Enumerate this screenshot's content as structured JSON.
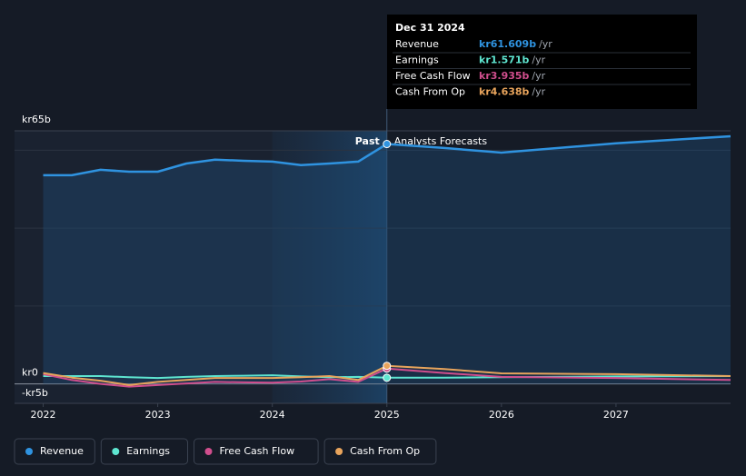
{
  "chart_data": {
    "type": "line",
    "annotations": {
      "past": "Past",
      "forecast": "Analysts Forecasts"
    },
    "tooltip": {
      "date": "Dec 31 2024",
      "rows": [
        {
          "name": "Revenue",
          "value": "kr61.609b",
          "unit": "/yr"
        },
        {
          "name": "Earnings",
          "value": "kr1.571b",
          "unit": "/yr"
        },
        {
          "name": "Free Cash Flow",
          "value": "kr3.935b",
          "unit": "/yr"
        },
        {
          "name": "Cash From Op",
          "value": "kr4.638b",
          "unit": "/yr"
        }
      ]
    },
    "x": [
      2022.0,
      2022.25,
      2022.5,
      2022.75,
      2023.0,
      2023.25,
      2023.5,
      2023.75,
      2024.0,
      2024.25,
      2024.5,
      2024.75,
      2025.0,
      2025.5,
      2026.0,
      2027.0,
      2028.0
    ],
    "series": [
      {
        "name": "Revenue",
        "color": "#2f93e0",
        "values": [
          53.6,
          53.6,
          55.0,
          54.5,
          54.5,
          56.6,
          57.6,
          57.3,
          57.1,
          56.2,
          56.6,
          57.1,
          61.609,
          60.6,
          59.4,
          61.8,
          63.6
        ]
      },
      {
        "name": "Earnings",
        "color": "#5ee5d0",
        "values": [
          2.0,
          2.0,
          2.0,
          1.7,
          1.5,
          1.8,
          2.0,
          2.1,
          2.2,
          1.9,
          1.7,
          1.8,
          1.571,
          1.6,
          1.7,
          1.9,
          2.0
        ]
      },
      {
        "name": "Free Cash Flow",
        "color": "#d04e8d",
        "values": [
          2.5,
          1.0,
          0.0,
          -0.7,
          -0.3,
          0.1,
          0.5,
          0.4,
          0.3,
          0.6,
          1.2,
          0.5,
          3.935,
          2.8,
          1.8,
          1.5,
          1.0
        ]
      },
      {
        "name": "Cash From Op",
        "color": "#e8a45c",
        "values": [
          2.8,
          1.6,
          0.8,
          -0.3,
          0.5,
          1.0,
          1.5,
          1.5,
          1.5,
          1.7,
          2.0,
          1.0,
          4.638,
          3.8,
          2.7,
          2.5,
          2.0
        ]
      }
    ],
    "xlim": [
      2021.75,
      2028.0
    ],
    "xticks": [
      2022,
      2023,
      2024,
      2025,
      2026,
      2027
    ],
    "ylim": [
      -5,
      65
    ],
    "yticks": [
      {
        "value": 65,
        "label": "kr65b"
      },
      {
        "value": 0,
        "label": "kr0"
      },
      {
        "value": -5,
        "label": "-kr5b"
      }
    ],
    "grid": [
      20,
      40,
      60
    ],
    "past_end": 2025.0,
    "highlight_start": 2024.0
  }
}
